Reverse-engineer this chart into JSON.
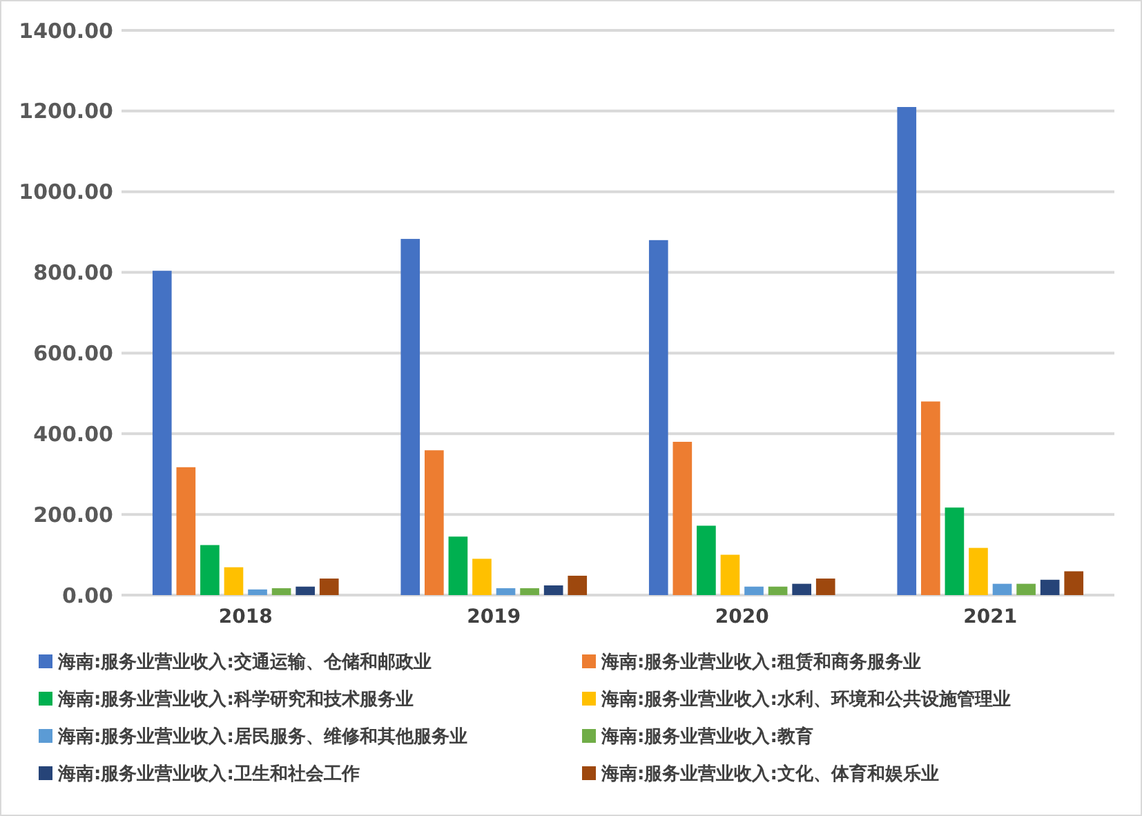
{
  "chart_data": {
    "type": "bar",
    "categories": [
      "2018",
      "2019",
      "2020",
      "2021"
    ],
    "series": [
      {
        "name": "海南:服务业营业收入:交通运输、仓储和邮政业",
        "color": "#4472c4",
        "values": [
          804,
          883,
          880,
          1210
        ]
      },
      {
        "name": "海南:服务业营业收入:租赁和商务服务业",
        "color": "#ed7d31",
        "values": [
          317,
          359,
          380,
          480
        ]
      },
      {
        "name": "海南:服务业营业收入:科学研究和技术服务业",
        "color": "#00b050",
        "values": [
          124,
          145,
          172,
          217
        ]
      },
      {
        "name": "海南:服务业营业收入:水利、环境和公共设施管理业",
        "color": "#ffc000",
        "values": [
          69,
          90,
          100,
          117
        ]
      },
      {
        "name": "海南:服务业营业收入:居民服务、维修和其他服务业",
        "color": "#5b9bd5",
        "values": [
          14,
          17,
          21,
          28
        ]
      },
      {
        "name": "海南:服务业营业收入:教育",
        "color": "#70ad47",
        "values": [
          17,
          17,
          21,
          28
        ]
      },
      {
        "name": "海南:服务业营业收入:卫生和社会工作",
        "color": "#264478",
        "values": [
          21,
          24,
          28,
          38
        ]
      },
      {
        "name": "海南:服务业营业收入:文化、体育和娱乐业",
        "color": "#9e480e",
        "values": [
          41,
          48,
          41,
          59
        ]
      }
    ],
    "ylim": [
      0,
      1400
    ],
    "yticks": [
      {
        "value": 0,
        "label": "0.00"
      },
      {
        "value": 200,
        "label": "200.00"
      },
      {
        "value": 400,
        "label": "400.00"
      },
      {
        "value": 600,
        "label": "600.00"
      },
      {
        "value": 800,
        "label": "800.00"
      },
      {
        "value": 1000,
        "label": "1000.00"
      },
      {
        "value": 1200,
        "label": "1200.00"
      },
      {
        "value": 1400,
        "label": "1400.00"
      }
    ],
    "grid": "y",
    "legend": "bottom"
  }
}
